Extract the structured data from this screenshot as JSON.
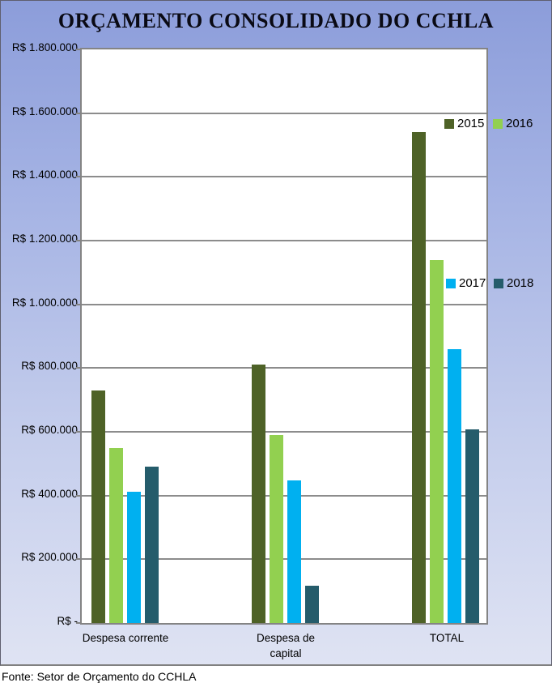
{
  "footer": {
    "source_text": "Fonte: Setor de Orçamento do CCHLA"
  },
  "colors": {
    "panel_gradient_top": "#8C9DDA",
    "panel_gradient_bottom": "#DFE3F3",
    "plot_background": "#FFFFFF",
    "gridline": "#8C8C8C",
    "series_2015": "#4E6227",
    "series_2016": "#92D050",
    "series_2017": "#00B0F0",
    "series_2018": "#255C6B"
  },
  "chart_data": {
    "type": "bar",
    "title": "ORÇAMENTO CONSOLIDADO DO CCHLA",
    "categories": [
      "Despesa corrente",
      "Despesa de capital",
      "TOTAL"
    ],
    "series": [
      {
        "name": "2015",
        "color": "#4E6227",
        "values": [
          730000,
          810000,
          1540000
        ]
      },
      {
        "name": "2016",
        "color": "#92D050",
        "values": [
          548000,
          590000,
          1138000
        ]
      },
      {
        "name": "2017",
        "color": "#00B0F0",
        "values": [
          413000,
          447000,
          860000
        ]
      },
      {
        "name": "2018",
        "color": "#255C6B",
        "values": [
          490000,
          118000,
          608000
        ]
      }
    ],
    "ylabel": "",
    "xlabel": "",
    "ylim": [
      0,
      1800000
    ],
    "ytick_step": 200000,
    "ytick_labels": [
      "R$ -",
      "R$ 200.000",
      "R$ 400.000",
      "R$ 600.000",
      "R$ 800.000",
      "R$ 1.000.000",
      "R$ 1.200.000",
      "R$ 1.400.000",
      "R$ 1.600.000",
      "R$ 1.800.000"
    ],
    "grid": true,
    "legend_entries": [
      "2015",
      "2016",
      "2017",
      "2018"
    ],
    "legend_position": "overlay-right",
    "source_note": "Fonte: Setor de Orçamento do CCHLA"
  }
}
